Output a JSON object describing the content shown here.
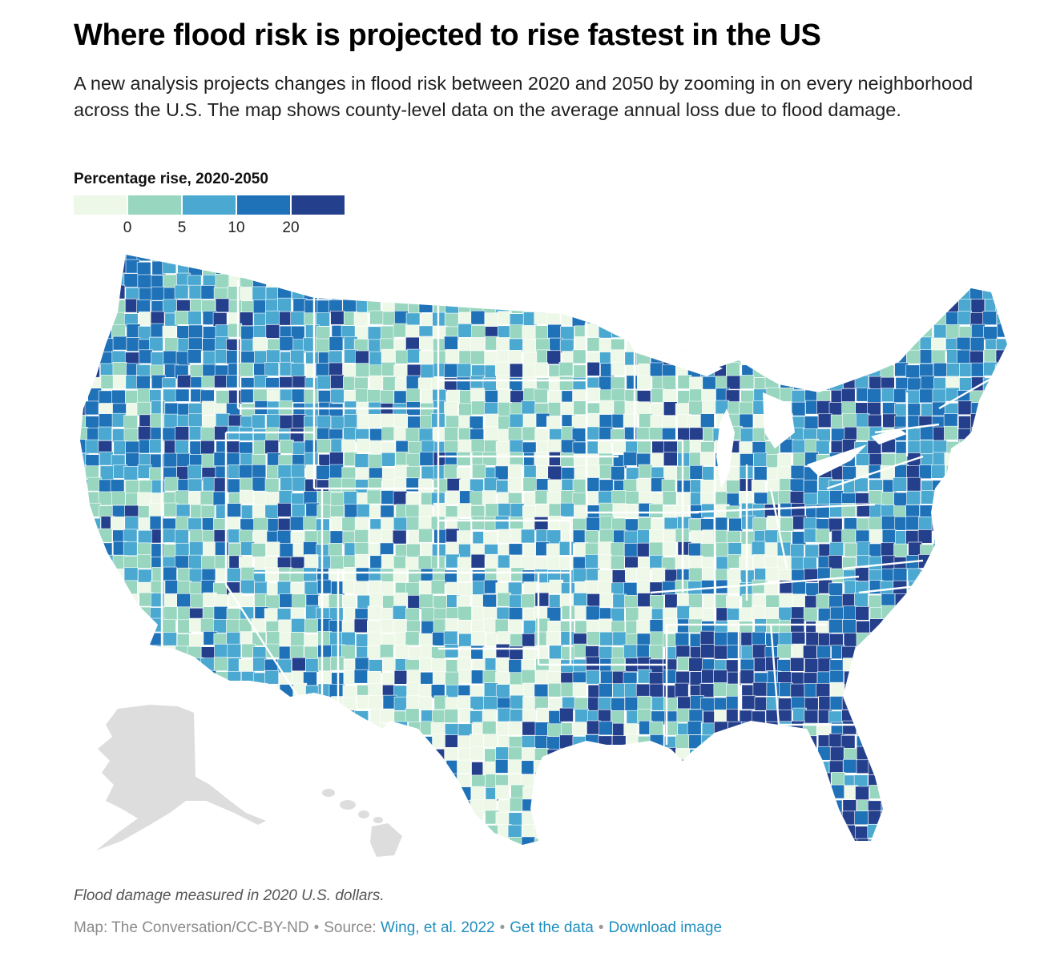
{
  "header": {
    "title": "Where flood risk is projected to rise fastest in the US",
    "subtitle": "A new analysis projects changes in flood risk between 2020 and 2050 by zooming in on every neighborhood across the U.S. The map shows county-level data on the average annual loss due to flood damage."
  },
  "legend": {
    "title": "Percentage rise, 2020-2050",
    "colors": [
      "#eef8e8",
      "#98d6c0",
      "#4ba9d1",
      "#1f72b8",
      "#243f8c"
    ],
    "ticks": [
      "0",
      "5",
      "10",
      "20"
    ]
  },
  "map": {
    "type": "choropleth",
    "region": "contiguous United States (counties)",
    "inset_color": "#dddddd",
    "border_color": "#ffffff"
  },
  "footer": {
    "note": "Flood damage measured in 2020 U.S. dollars.",
    "credit_prefix": "Map: The Conversation/CC-BY-ND",
    "separator": "•",
    "source_label": "Source:",
    "source_link": "Wing, et al. 2022",
    "data_link": "Get the data",
    "download_link": "Download image"
  }
}
